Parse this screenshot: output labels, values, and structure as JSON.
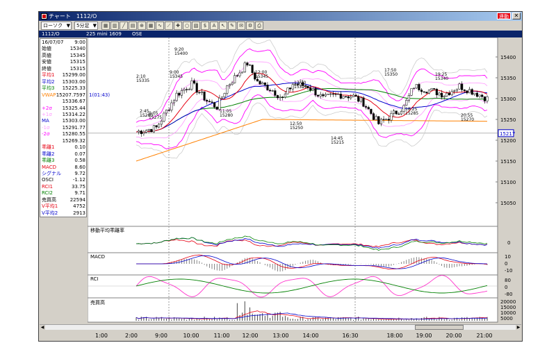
{
  "window": {
    "title": "チャート　1112/O",
    "link_label": "連動",
    "close_glyph": "✕"
  },
  "toolbar": {
    "chart_type": "ローソク",
    "interval": "5分足",
    "icons": [
      "grid-icon",
      "candle-icon",
      "line-icon",
      "bar-icon",
      "zoom-icon",
      "table-icon",
      "wave-icon",
      "trend-icon",
      "cross-icon",
      "circle-icon",
      "layers-icon",
      "dollar-icon",
      "text-icon",
      "select-icon",
      "clear-icon",
      "note-icon",
      "settings-icon",
      "print-icon"
    ]
  },
  "infobar": {
    "code": "1112/O",
    "name": "225 mini 1609",
    "market": "OSE"
  },
  "side": [
    {
      "k": "16/07/07",
      "v": "9:00",
      "c": "#000000"
    },
    {
      "k": "始値",
      "v": "15340",
      "c": "#000000"
    },
    {
      "k": "高値",
      "v": "15345",
      "c": "#000000"
    },
    {
      "k": "安値",
      "v": "15315",
      "c": "#000000"
    },
    {
      "k": "終値",
      "v": "15315",
      "c": "#000000"
    },
    {
      "k": "平均1",
      "v": "15299.00",
      "c": "#e60012"
    },
    {
      "k": "平均2",
      "v": "15303.00",
      "c": "#0000cc"
    },
    {
      "k": "平均3",
      "v": "15225.33",
      "c": "#008000"
    },
    {
      "k": "VWAP",
      "v": "15207.7597",
      "c": "#ff8000"
    },
    {
      "k": "",
      "v": "15336.67",
      "c": "#000000"
    },
    {
      "k": "+2σ",
      "v": "15325.44",
      "c": "#ff00ff"
    },
    {
      "k": "+1σ",
      "v": "15314.22",
      "c": "#ff99ff"
    },
    {
      "k": "MA",
      "v": "15303.00",
      "c": "#0000cc"
    },
    {
      "k": "-1σ",
      "v": "15291.77",
      "c": "#ff99ff"
    },
    {
      "k": "-2σ",
      "v": "15280.55",
      "c": "#ff00ff"
    },
    {
      "k": "",
      "v": "15269.32",
      "c": "#000000"
    },
    {
      "k": "乖離1",
      "v": "0.10",
      "c": "#e60012"
    },
    {
      "k": "乖離2",
      "v": "0.07",
      "c": "#0000cc"
    },
    {
      "k": "乖離3",
      "v": "0.58",
      "c": "#008000"
    },
    {
      "k": "MACD",
      "v": "8.60",
      "c": "#e60012"
    },
    {
      "k": "シグナル",
      "v": "9.72",
      "c": "#0000cc"
    },
    {
      "k": "OSCI",
      "v": "-1.12",
      "c": "#000000"
    },
    {
      "k": "RCI1",
      "v": "33.75",
      "c": "#e60012"
    },
    {
      "k": "RCI2",
      "v": "9.71",
      "c": "#008000"
    },
    {
      "k": "売買高",
      "v": "22594",
      "c": "#000000"
    },
    {
      "k": "V平均1",
      "v": "4752",
      "c": "#e60012"
    },
    {
      "k": "V平均2",
      "v": "2913",
      "c": "#0000cc"
    }
  ],
  "price_axis": [
    "15400",
    "15350",
    "15300",
    "15250",
    "15200",
    "15150",
    "15100",
    "15050"
  ],
  "current_price_tag": "15217",
  "current_tag_left": "1(01:43)",
  "annotations": [
    {
      "t": "2:10",
      "v": "15335"
    },
    {
      "t": "2:45",
      "v": "15280"
    },
    {
      "t": "9:00",
      "v": "15345"
    },
    {
      "t": "9:20",
      "v": "15400"
    },
    {
      "t": "9:05",
      "v": "15275"
    },
    {
      "t": "11:05",
      "v": "15280"
    },
    {
      "t": "12:00",
      "v": "15345"
    },
    {
      "t": "12:50",
      "v": "15250"
    },
    {
      "t": "13:20",
      "v": "15320"
    },
    {
      "t": "14:45",
      "v": "15215"
    },
    {
      "t": "17:50",
      "v": "15350"
    },
    {
      "t": "18:25",
      "v": "15285"
    },
    {
      "t": "19:25",
      "v": "15340"
    },
    {
      "t": "20:55",
      "v": "15270"
    }
  ],
  "panels": {
    "deviation": {
      "title": "移動平均乖離率",
      "axis": [
        "0"
      ]
    },
    "macd": {
      "title": "MACD",
      "axis": [
        "10",
        "0",
        "-10"
      ]
    },
    "rci": {
      "title": "RCI",
      "axis": [
        "80",
        "0",
        "-80"
      ]
    },
    "volume": {
      "title": "売買高",
      "axis": [
        "20000",
        "15000",
        "10000",
        "5000"
      ]
    }
  },
  "x_axis": [
    "1:00",
    "2:00",
    "9:00",
    "10:00",
    "11:00",
    "12:00",
    "13:00",
    "14:00",
    "16:30",
    "18:00",
    "19:00",
    "20:00",
    "21:00"
  ],
  "colors": {
    "accent_title": "#0a246a",
    "sma1": "#e60012",
    "sma2": "#0000cc",
    "sma3": "#008000",
    "vwap": "#ff8000",
    "bb_outer": "#ff00ff",
    "bb_inner": "#ff99ff"
  }
}
